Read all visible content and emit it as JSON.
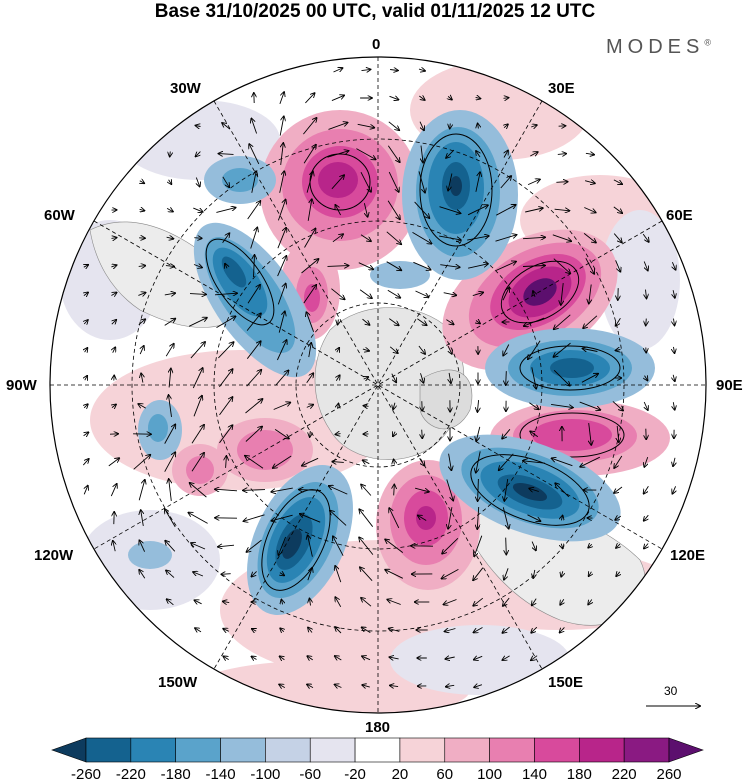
{
  "title": "Base 31/10/2025 00 UTC, valid 01/11/2025 12 UTC",
  "logo": "MODES",
  "logo_mark": "®",
  "longitude_labels": {
    "lon_0": "0",
    "lon_30e": "30E",
    "lon_60e": "60E",
    "lon_90e": "90E",
    "lon_120e": "120E",
    "lon_150e": "150E",
    "lon_180": "180",
    "lon_150w": "150W",
    "lon_120w": "120W",
    "lon_90w": "90W",
    "lon_60w": "60W",
    "lon_30w": "30W"
  },
  "reference_vector": "30",
  "colorbar": {
    "labels": [
      "-260",
      "-220",
      "-180",
      "-140",
      "-100",
      "-60",
      "-20",
      "20",
      "60",
      "100",
      "140",
      "180",
      "220",
      "260"
    ],
    "colors": [
      "#0d3b5e",
      "#14628f",
      "#2a84b4",
      "#5aa3cb",
      "#95bddb",
      "#c5d2e6",
      "#e5e4ef",
      "#ffffff",
      "#f6d3d8",
      "#f0aec4",
      "#e87fb0",
      "#d84a9c",
      "#b8258a",
      "#8a1a82",
      "#5c0f6e"
    ]
  },
  "anomalies": [
    {
      "name": "high-atlantic",
      "value": 200
    },
    {
      "name": "low-norway",
      "value": -220
    },
    {
      "name": "high-russia",
      "value": 260
    },
    {
      "name": "low-siberia",
      "value": -220
    },
    {
      "name": "high-east-siberia",
      "value": 200
    },
    {
      "name": "low-okhotsk",
      "value": -240
    },
    {
      "name": "high-bering",
      "value": 200
    },
    {
      "name": "low-north-pacific",
      "value": -260
    },
    {
      "name": "low-hudson",
      "value": -200
    },
    {
      "name": "low-labrador",
      "value": -100
    }
  ]
}
